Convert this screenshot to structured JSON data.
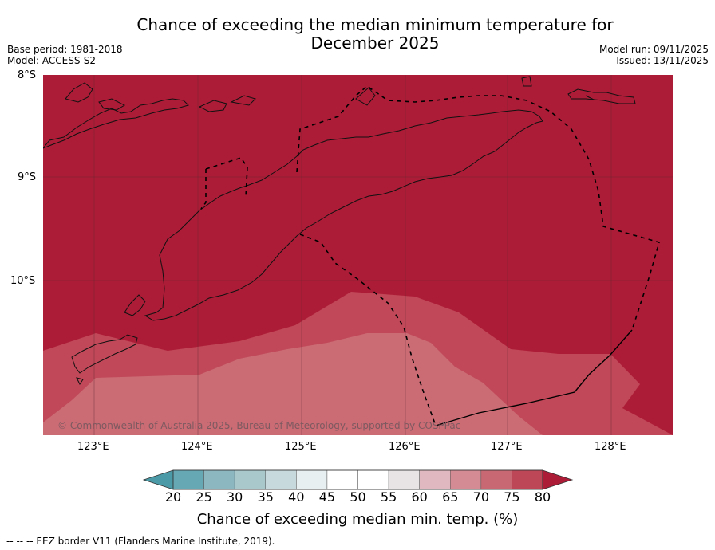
{
  "title_line1": "Chance of exceeding the median minimum temperature for",
  "title_line2": "December 2025",
  "base_period": "Base period: 1981-2018",
  "model": "Model: ACCESS-S2",
  "model_run": "Model run: 09/11/2025",
  "issued": "Issued: 13/11/2025",
  "lat_labels": [
    "8°S",
    "9°S",
    "10°S"
  ],
  "lon_labels": [
    "123°E",
    "124°E",
    "125°E",
    "126°E",
    "127°E",
    "128°E"
  ],
  "copyright": "© Commonwealth of Australia 2025, Bureau of Meteorology, supported by COSPPac",
  "colorbar": {
    "ticks": [
      "20",
      "25",
      "30",
      "35",
      "40",
      "45",
      "50",
      "55",
      "60",
      "65",
      "70",
      "75",
      "80"
    ],
    "colors": [
      "#66a9b5",
      "#8cb6c0",
      "#a8c8cc",
      "#c8d9dd",
      "#e8eff1",
      "#ffffff",
      "#ffffff",
      "#e8e3e5",
      "#e0b8bf",
      "#d48b93",
      "#c86872",
      "#bd4757"
    ],
    "under_color": "#4a9aa7",
    "over_color": "#ad1c37",
    "label": "Chance of exceeding median min. temp. (%)"
  },
  "region_colors": {
    "band_80": "#ad1c37",
    "band_75": "#c04858",
    "band_70": "#cb6b74"
  },
  "footer": "--  --  -- EEZ border V11 (Flanders Marine Institute, 2019)."
}
